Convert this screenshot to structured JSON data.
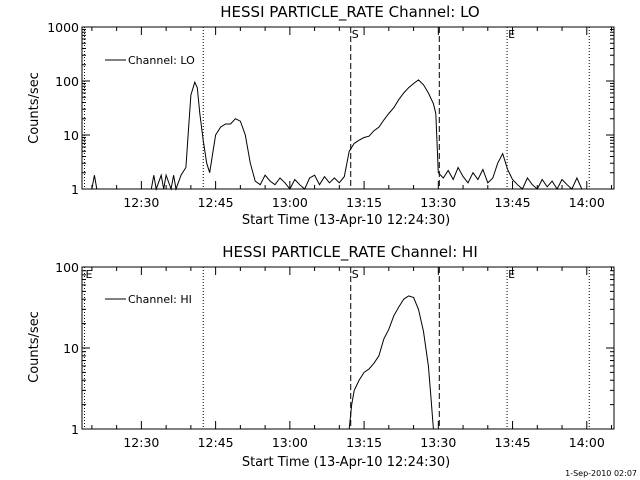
{
  "footer_date": "1-Sep-2010 02:07",
  "chart_data": [
    {
      "type": "line",
      "title": "HESSI PARTICLE_RATE Channel: LO",
      "xlabel": "Start Time (13-Apr-10 12:24:30)",
      "ylabel": "Counts/sec",
      "yscale": "log",
      "ylim": [
        1,
        1000
      ],
      "xlim_minutes": [
        -6,
        101.5
      ],
      "x_ticks": [
        {
          "m": 6,
          "label": "12:30"
        },
        {
          "m": 21,
          "label": "12:45"
        },
        {
          "m": 36,
          "label": "13:00"
        },
        {
          "m": 51,
          "label": "13:15"
        },
        {
          "m": 66,
          "label": "13:30"
        },
        {
          "m": 81,
          "label": "13:45"
        },
        {
          "m": 96,
          "label": "14:00"
        }
      ],
      "y_ticks": [
        {
          "v": 1,
          "label": "1"
        },
        {
          "v": 10,
          "label": "10"
        },
        {
          "v": 100,
          "label": "100"
        },
        {
          "v": 1000,
          "label": "1000"
        }
      ],
      "legend": "Channel: LO",
      "markers": [
        {
          "m": 48.3,
          "label": "S",
          "style": "dashed"
        },
        {
          "m": 79.9,
          "label": "E",
          "style": "dotted"
        },
        {
          "m": 66.2,
          "label": "",
          "style": "dashed"
        },
        {
          "m": 18.5,
          "label": "",
          "style": "dotted"
        },
        {
          "m": 96.5,
          "label": "",
          "style": "dotted"
        },
        {
          "m": -5.5,
          "label": "",
          "style": "dotted"
        }
      ],
      "series": {
        "name": "Channel: LO",
        "x": [
          -6,
          -4,
          -3.5,
          -3,
          8,
          8.5,
          9,
          10,
          10.5,
          11,
          12,
          12.5,
          13,
          14,
          15,
          15.5,
          16,
          16.8,
          17.3,
          17.8,
          18.5,
          19.2,
          19.8,
          20.3,
          21,
          22,
          23,
          24,
          25,
          26,
          27,
          28,
          29,
          30,
          31,
          32,
          33,
          34,
          35,
          36,
          37,
          38,
          39,
          40,
          41,
          42,
          43,
          44,
          45,
          46,
          47,
          48,
          49,
          50,
          51,
          52,
          53,
          54,
          55,
          56,
          57,
          58,
          59,
          60,
          61,
          62,
          63,
          64,
          65,
          65.5,
          66,
          67,
          68,
          69,
          70,
          71,
          72,
          73,
          74,
          75,
          76,
          77,
          78,
          79,
          80,
          81,
          82,
          83,
          84,
          85,
          86,
          87,
          88,
          89,
          90,
          91,
          92,
          93,
          94,
          95,
          96
        ],
        "y": [
          1,
          1,
          1.8,
          1,
          1,
          1.8,
          1,
          1.8,
          1,
          1.8,
          1,
          1.8,
          1,
          1.8,
          2.5,
          12,
          55,
          95,
          75,
          25,
          8,
          3,
          2,
          4,
          10,
          14,
          16,
          16,
          20,
          18,
          10,
          3,
          1.4,
          1.2,
          1.8,
          1.4,
          1.2,
          1.6,
          1.3,
          1,
          1.5,
          1.2,
          1,
          1.6,
          1.8,
          1.2,
          1.7,
          1.3,
          1.6,
          1.3,
          1.7,
          5,
          7,
          8,
          9,
          9.5,
          12,
          14,
          19,
          25,
          32,
          45,
          60,
          75,
          90,
          105,
          85,
          60,
          38,
          25,
          2,
          1.6,
          2.2,
          1.5,
          2.5,
          1.7,
          1.3,
          2,
          1.5,
          2.3,
          1.3,
          1.6,
          3,
          4.5,
          2.3,
          1.5,
          1.2,
          1,
          1.6,
          1.2,
          1,
          1.5,
          1.1,
          1.4,
          1,
          1.5,
          1.2,
          1,
          1.6,
          1,
          1
        ]
      }
    },
    {
      "type": "line",
      "title": "HESSI PARTICLE_RATE Channel: HI",
      "xlabel": "Start Time (13-Apr-10 12:24:30)",
      "ylabel": "Counts/sec",
      "yscale": "log",
      "ylim": [
        1,
        100
      ],
      "xlim_minutes": [
        -6,
        101.5
      ],
      "x_ticks": [
        {
          "m": 6,
          "label": "12:30"
        },
        {
          "m": 21,
          "label": "12:45"
        },
        {
          "m": 36,
          "label": "13:00"
        },
        {
          "m": 51,
          "label": "13:15"
        },
        {
          "m": 66,
          "label": "13:30"
        },
        {
          "m": 81,
          "label": "13:45"
        },
        {
          "m": 96,
          "label": "14:00"
        }
      ],
      "y_ticks": [
        {
          "v": 1,
          "label": "1"
        },
        {
          "v": 10,
          "label": "10"
        },
        {
          "v": 100,
          "label": "100"
        }
      ],
      "legend": "Channel: HI",
      "markers": [
        {
          "m": 48.3,
          "label": "S",
          "style": "dashed"
        },
        {
          "m": 79.9,
          "label": "E",
          "style": "dotted"
        },
        {
          "m": 66.2,
          "label": "",
          "style": "dashed"
        },
        {
          "m": 18.5,
          "label": "",
          "style": "dotted"
        },
        {
          "m": 96.5,
          "label": "",
          "style": "dotted"
        },
        {
          "m": -5.5,
          "label": "E",
          "style": "dotted"
        }
      ],
      "series": {
        "name": "Channel: HI",
        "x": [
          48,
          48.5,
          49,
          50,
          51,
          52,
          53,
          54,
          55,
          56,
          57,
          58,
          59,
          60,
          61,
          62,
          63,
          64,
          64.5,
          65
        ],
        "y": [
          1,
          2,
          3,
          4,
          5,
          5.5,
          6.5,
          8,
          13,
          17,
          25,
          32,
          40,
          44,
          42,
          30,
          16,
          6,
          2.5,
          1
        ]
      }
    }
  ]
}
